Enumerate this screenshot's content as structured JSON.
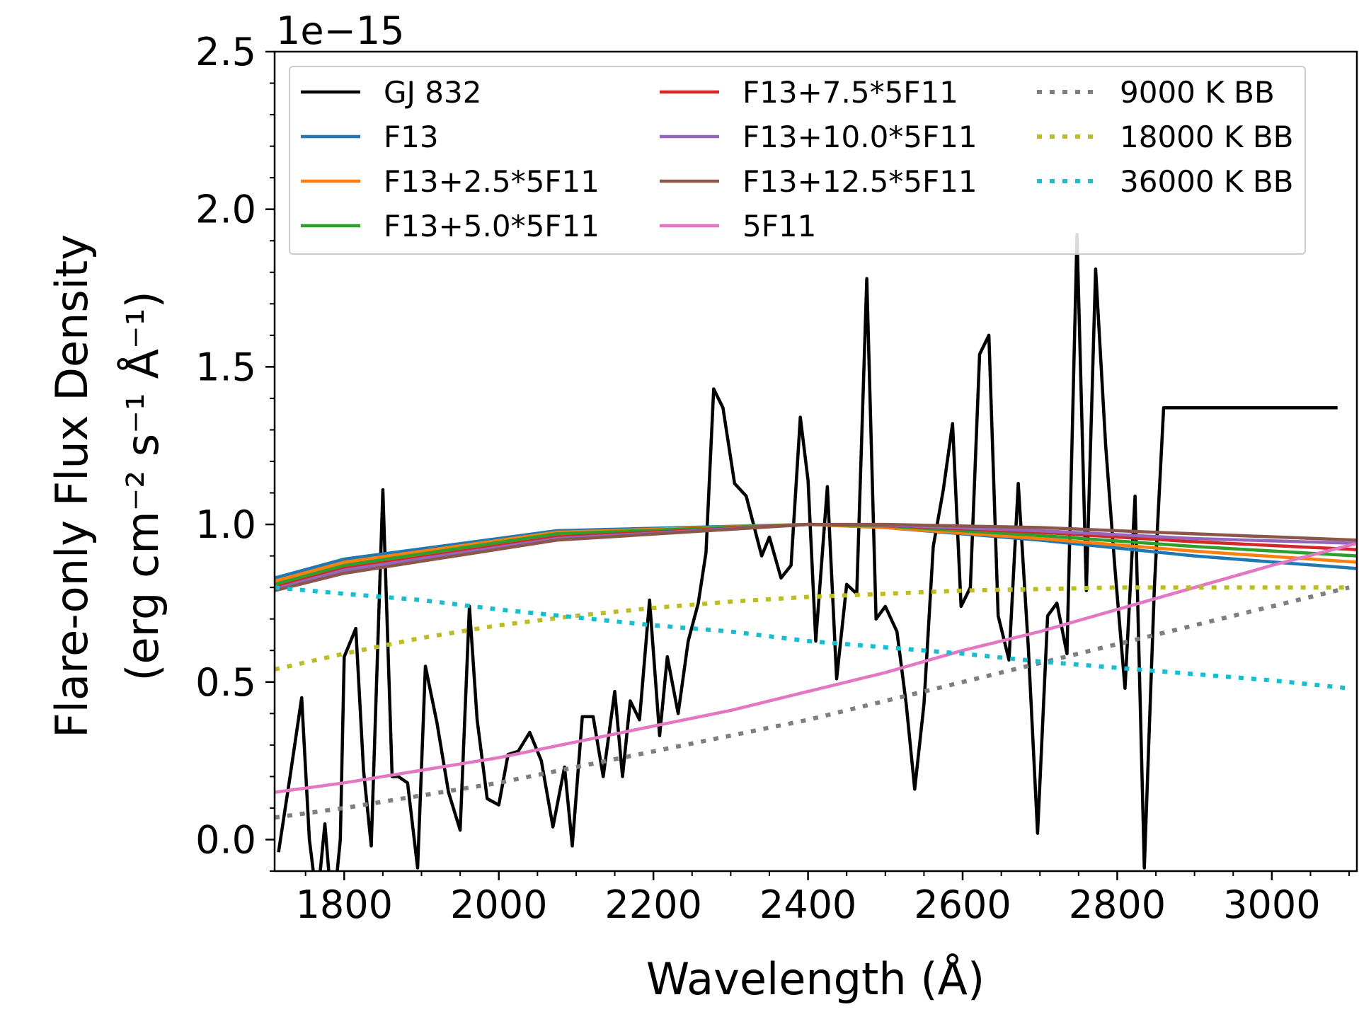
{
  "chart_data": {
    "type": "line",
    "title": "",
    "xlabel": "Wavelength (Å)",
    "ylabel_line1": "Flare-only Flux Density",
    "ylabel_line2": "(erg cm⁻² s⁻¹ Å⁻¹)",
    "y_scale_label": "1e−15",
    "y_scale": 1e-15,
    "xlim": [
      1710,
      3110
    ],
    "ylim": [
      -0.1,
      2.5
    ],
    "x_ticks": [
      1800,
      2000,
      2200,
      2400,
      2600,
      2800,
      3000
    ],
    "x_tick_labels": [
      "1800",
      "2000",
      "2200",
      "2400",
      "2600",
      "2800",
      "3000"
    ],
    "y_ticks": [
      0.0,
      0.5,
      1.0,
      1.5,
      2.0,
      2.5
    ],
    "y_tick_labels": [
      "0.0",
      "0.5",
      "1.0",
      "1.5",
      "2.0",
      "2.5"
    ],
    "legend_location": "top, 3 columns",
    "series": [
      {
        "name": "GJ 832",
        "color": "#000000",
        "style": "solid",
        "x": [
          1715,
          1730,
          1745,
          1755,
          1765,
          1775,
          1785,
          1795,
          1800,
          1815,
          1825,
          1835,
          1850,
          1862,
          1870,
          1882,
          1895,
          1905,
          1920,
          1935,
          1950,
          1962,
          1972,
          1985,
          2000,
          2012,
          2025,
          2040,
          2055,
          2070,
          2085,
          2095,
          2108,
          2122,
          2135,
          2150,
          2160,
          2170,
          2182,
          2195,
          2208,
          2218,
          2232,
          2245,
          2258,
          2268,
          2278,
          2290,
          2305,
          2320,
          2340,
          2350,
          2365,
          2378,
          2390,
          2400,
          2410,
          2425,
          2437,
          2450,
          2463,
          2476,
          2488,
          2500,
          2515,
          2527,
          2538,
          2550,
          2562,
          2575,
          2587,
          2598,
          2610,
          2622,
          2634,
          2646,
          2660,
          2672,
          2685,
          2697,
          2710,
          2722,
          2735,
          2748,
          2760,
          2772,
          2785,
          2797,
          2810,
          2823,
          2835,
          2848,
          2860,
          2872,
          2885,
          2897,
          2910,
          2922,
          2934,
          2946,
          2958,
          2970,
          2982,
          2994,
          3005,
          3016,
          3028,
          3040,
          3052,
          3064,
          3075,
          3085
        ],
        "y": [
          -0.04,
          0.2,
          0.45,
          0.0,
          -0.2,
          0.05,
          -0.25,
          0.0,
          0.58,
          0.67,
          0.22,
          -0.02,
          1.11,
          0.2,
          0.2,
          0.18,
          -0.09,
          0.55,
          0.37,
          0.15,
          0.03,
          0.74,
          0.38,
          0.13,
          0.11,
          0.27,
          0.28,
          0.34,
          0.25,
          0.04,
          0.23,
          -0.02,
          0.39,
          0.39,
          0.2,
          0.47,
          0.2,
          0.44,
          0.38,
          0.76,
          0.33,
          0.58,
          0.4,
          0.63,
          0.75,
          0.91,
          1.43,
          1.37,
          1.13,
          1.09,
          0.9,
          0.96,
          0.83,
          0.87,
          1.34,
          1.14,
          0.63,
          1.12,
          0.51,
          0.81,
          0.78,
          1.78,
          0.7,
          0.74,
          0.66,
          0.43,
          0.16,
          0.43,
          0.93,
          1.11,
          1.32,
          0.74,
          0.8,
          1.54,
          1.6,
          0.71,
          0.57,
          1.13,
          0.61,
          0.02,
          0.71,
          0.75,
          0.59,
          1.92,
          0.79,
          1.81,
          1.25,
          0.86,
          0.48,
          1.09,
          -0.09,
          0.8,
          1.37,
          1.37,
          1.37,
          1.37,
          1.37,
          1.37,
          1.37,
          1.37,
          1.37,
          1.37,
          1.37,
          1.37,
          1.37,
          1.37,
          1.37,
          1.37,
          1.37,
          1.37,
          1.37,
          1.37
        ]
      },
      {
        "name": "F13",
        "color": "#1f77b4",
        "style": "solid",
        "x": [
          1710,
          1800,
          2075,
          2400,
          2500,
          2700,
          2900,
          3110
        ],
        "y": [
          0.83,
          0.89,
          0.98,
          1.0,
          0.99,
          0.95,
          0.9,
          0.86
        ]
      },
      {
        "name": "F13+2.5*5F11",
        "color": "#ff7f0e",
        "style": "solid",
        "x": [
          1710,
          1800,
          2075,
          2400,
          2500,
          2700,
          2900,
          3110
        ],
        "y": [
          0.82,
          0.88,
          0.975,
          1.0,
          0.99,
          0.955,
          0.915,
          0.88
        ]
      },
      {
        "name": "F13+5.0*5F11",
        "color": "#2ca02c",
        "style": "solid",
        "x": [
          1710,
          1800,
          2075,
          2400,
          2500,
          2700,
          2900,
          3110
        ],
        "y": [
          0.81,
          0.87,
          0.97,
          1.0,
          0.995,
          0.965,
          0.93,
          0.9
        ]
      },
      {
        "name": "F13+7.5*5F11",
        "color": "#d62728",
        "style": "solid",
        "x": [
          1710,
          1800,
          2075,
          2400,
          2500,
          2700,
          2900,
          3110
        ],
        "y": [
          0.8,
          0.86,
          0.96,
          1.0,
          0.997,
          0.975,
          0.945,
          0.92
        ]
      },
      {
        "name": "F13+10.0*5F11",
        "color": "#9467bd",
        "style": "solid",
        "x": [
          1710,
          1800,
          2075,
          2400,
          2500,
          2700,
          2900,
          3110
        ],
        "y": [
          0.795,
          0.855,
          0.955,
          1.0,
          0.998,
          0.98,
          0.955,
          0.94
        ]
      },
      {
        "name": "F13+12.5*5F11",
        "color": "#8c564b",
        "style": "solid",
        "x": [
          1710,
          1800,
          2075,
          2400,
          2500,
          2700,
          2900,
          3110
        ],
        "y": [
          0.79,
          0.845,
          0.95,
          1.0,
          1.0,
          0.99,
          0.97,
          0.95
        ]
      },
      {
        "name": "5F11",
        "color": "#e377c2",
        "style": "solid",
        "x": [
          1710,
          1800,
          1900,
          2000,
          2100,
          2200,
          2300,
          2400,
          2500,
          2600,
          2700,
          2800,
          2900,
          3000,
          3110
        ],
        "y": [
          0.15,
          0.18,
          0.22,
          0.26,
          0.31,
          0.36,
          0.41,
          0.47,
          0.53,
          0.6,
          0.66,
          0.73,
          0.8,
          0.87,
          0.94
        ]
      },
      {
        "name": "9000 K BB",
        "color": "#7f7f7f",
        "style": "dotted",
        "x": [
          1710,
          1800,
          1900,
          2000,
          2100,
          2200,
          2300,
          2400,
          2500,
          2600,
          2700,
          2800,
          2900,
          3000,
          3100
        ],
        "y": [
          0.07,
          0.1,
          0.14,
          0.18,
          0.23,
          0.28,
          0.33,
          0.38,
          0.44,
          0.5,
          0.56,
          0.62,
          0.68,
          0.74,
          0.8
        ]
      },
      {
        "name": "18000 K BB",
        "color": "#bcbd22",
        "style": "dotted",
        "x": [
          1710,
          1800,
          1900,
          2000,
          2100,
          2200,
          2300,
          2400,
          2500,
          2600,
          2700,
          2800,
          2900,
          3000,
          3100
        ],
        "y": [
          0.54,
          0.59,
          0.64,
          0.68,
          0.71,
          0.735,
          0.755,
          0.77,
          0.78,
          0.79,
          0.795,
          0.8,
          0.8,
          0.8,
          0.8
        ]
      },
      {
        "name": "36000 K BB",
        "color": "#17becf",
        "style": "dotted",
        "x": [
          1710,
          1800,
          1900,
          2000,
          2100,
          2200,
          2300,
          2400,
          2500,
          2600,
          2700,
          2800,
          2900,
          3000,
          3100
        ],
        "y": [
          0.8,
          0.78,
          0.76,
          0.73,
          0.705,
          0.68,
          0.66,
          0.63,
          0.61,
          0.59,
          0.565,
          0.545,
          0.525,
          0.505,
          0.48
        ]
      }
    ]
  }
}
